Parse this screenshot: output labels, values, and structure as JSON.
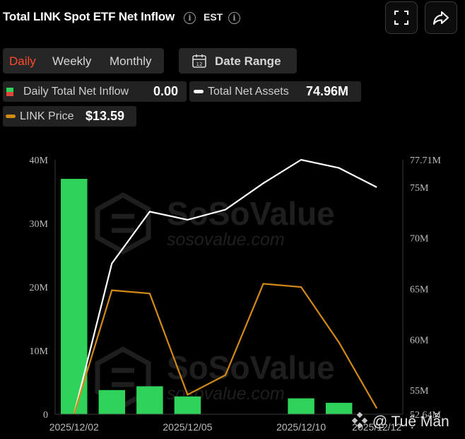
{
  "header": {
    "title": "Total LINK Spot ETF Net Inflow",
    "timezone": "EST"
  },
  "tabs": [
    {
      "label": "Daily",
      "active": true
    },
    {
      "label": "Weekly",
      "active": false
    },
    {
      "label": "Monthly",
      "active": false
    }
  ],
  "date_range": {
    "label": "Date Range"
  },
  "legend": {
    "inflow_label": "Daily Total Net Inflow",
    "inflow_value": "0.00",
    "assets_label": "Total Net Assets",
    "assets_value": "74.96M",
    "price_label": "LINK Price",
    "price_value": "$13.59"
  },
  "watermark": {
    "brand": "SoSoValue",
    "url": "sosovalue.com",
    "author": "@ Tuệ Mẫn"
  },
  "colors": {
    "bar": "#2fd35a",
    "assets_line": "#ffffff",
    "price_line": "#d28a17",
    "accent": "#ff4a2d"
  },
  "chart_data": {
    "type": "bar",
    "title": "Total LINK Spot ETF Net Inflow",
    "x": [
      "2025/12/02",
      "2025/12/03",
      "2025/12/04",
      "2025/12/05",
      "2025/12/08",
      "2025/12/09",
      "2025/12/10",
      "2025/12/11",
      "2025/12/12"
    ],
    "x_tick_labels": [
      "2025/12/02",
      "2025/12/05",
      "2025/12/10",
      "2025/12/12"
    ],
    "x_tick_indices": [
      0,
      3,
      6,
      8
    ],
    "y_left": {
      "ticks": [
        "0",
        "10M",
        "20M",
        "30M",
        "40M"
      ],
      "tick_values": [
        0,
        10,
        20,
        30,
        40
      ],
      "range": [
        0,
        40
      ],
      "unit": "M"
    },
    "y_right": {
      "ticks": [
        "52.64M",
        "55M",
        "60M",
        "65M",
        "70M",
        "75M",
        "77.71M"
      ],
      "tick_values": [
        52.64,
        55,
        60,
        65,
        70,
        75,
        77.71
      ],
      "range": [
        52.64,
        77.71
      ],
      "unit": "M"
    },
    "series": [
      {
        "name": "Daily Total Net Inflow",
        "type": "bar",
        "axis": "left",
        "values": [
          37.0,
          3.8,
          4.4,
          2.8,
          0,
          0,
          2.5,
          1.8,
          0
        ]
      },
      {
        "name": "Total Net Assets",
        "type": "line",
        "axis": "right",
        "values": [
          52.64,
          67.5,
          72.6,
          71.8,
          72.8,
          75.4,
          77.71,
          76.9,
          75.0
        ]
      },
      {
        "name": "LINK Price",
        "type": "line",
        "axis": "hidden",
        "values": [
          13.5,
          15.4,
          15.35,
          13.8,
          14.1,
          15.5,
          15.45,
          14.6,
          13.59
        ]
      }
    ],
    "price_scale": {
      "range": [
        13.5,
        17.4
      ]
    },
    "grid": false,
    "legend": "top-left"
  }
}
